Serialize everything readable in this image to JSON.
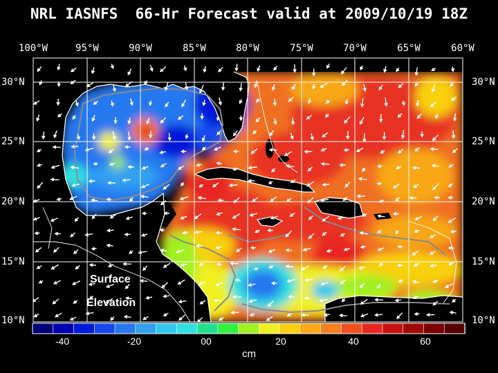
{
  "title": "NRL IASNFS  66-Hr Forecast valid at 2009/10/19 18Z",
  "longitudes": [
    "100°W",
    "95°W",
    "90°W",
    "85°W",
    "80°W",
    "75°W",
    "70°W",
    "65°W",
    "60°W"
  ],
  "latitudes": [
    "30°N",
    "25°N",
    "20°N",
    "15°N",
    "10°N"
  ],
  "overlay": {
    "line1": "Surface",
    "line2": "Elevation"
  },
  "colorbar": {
    "labels": [
      "-40",
      "-20",
      "00",
      "20",
      "40",
      "60"
    ],
    "unit": "cm",
    "colors": [
      "#00007a",
      "#0000b0",
      "#0018d8",
      "#1848f0",
      "#2878f0",
      "#30a0f0",
      "#30c8f0",
      "#30e0e0",
      "#20e090",
      "#30f040",
      "#a0f020",
      "#f0f020",
      "#f8d010",
      "#f8a818",
      "#f88020",
      "#f05020",
      "#e82820",
      "#c81010",
      "#a00808",
      "#7a0000",
      "#580000"
    ]
  },
  "colors": {
    "background": "#000000",
    "land": "#000000",
    "grid": "#ffffff",
    "bathymetry": "#8a8a8a"
  }
}
